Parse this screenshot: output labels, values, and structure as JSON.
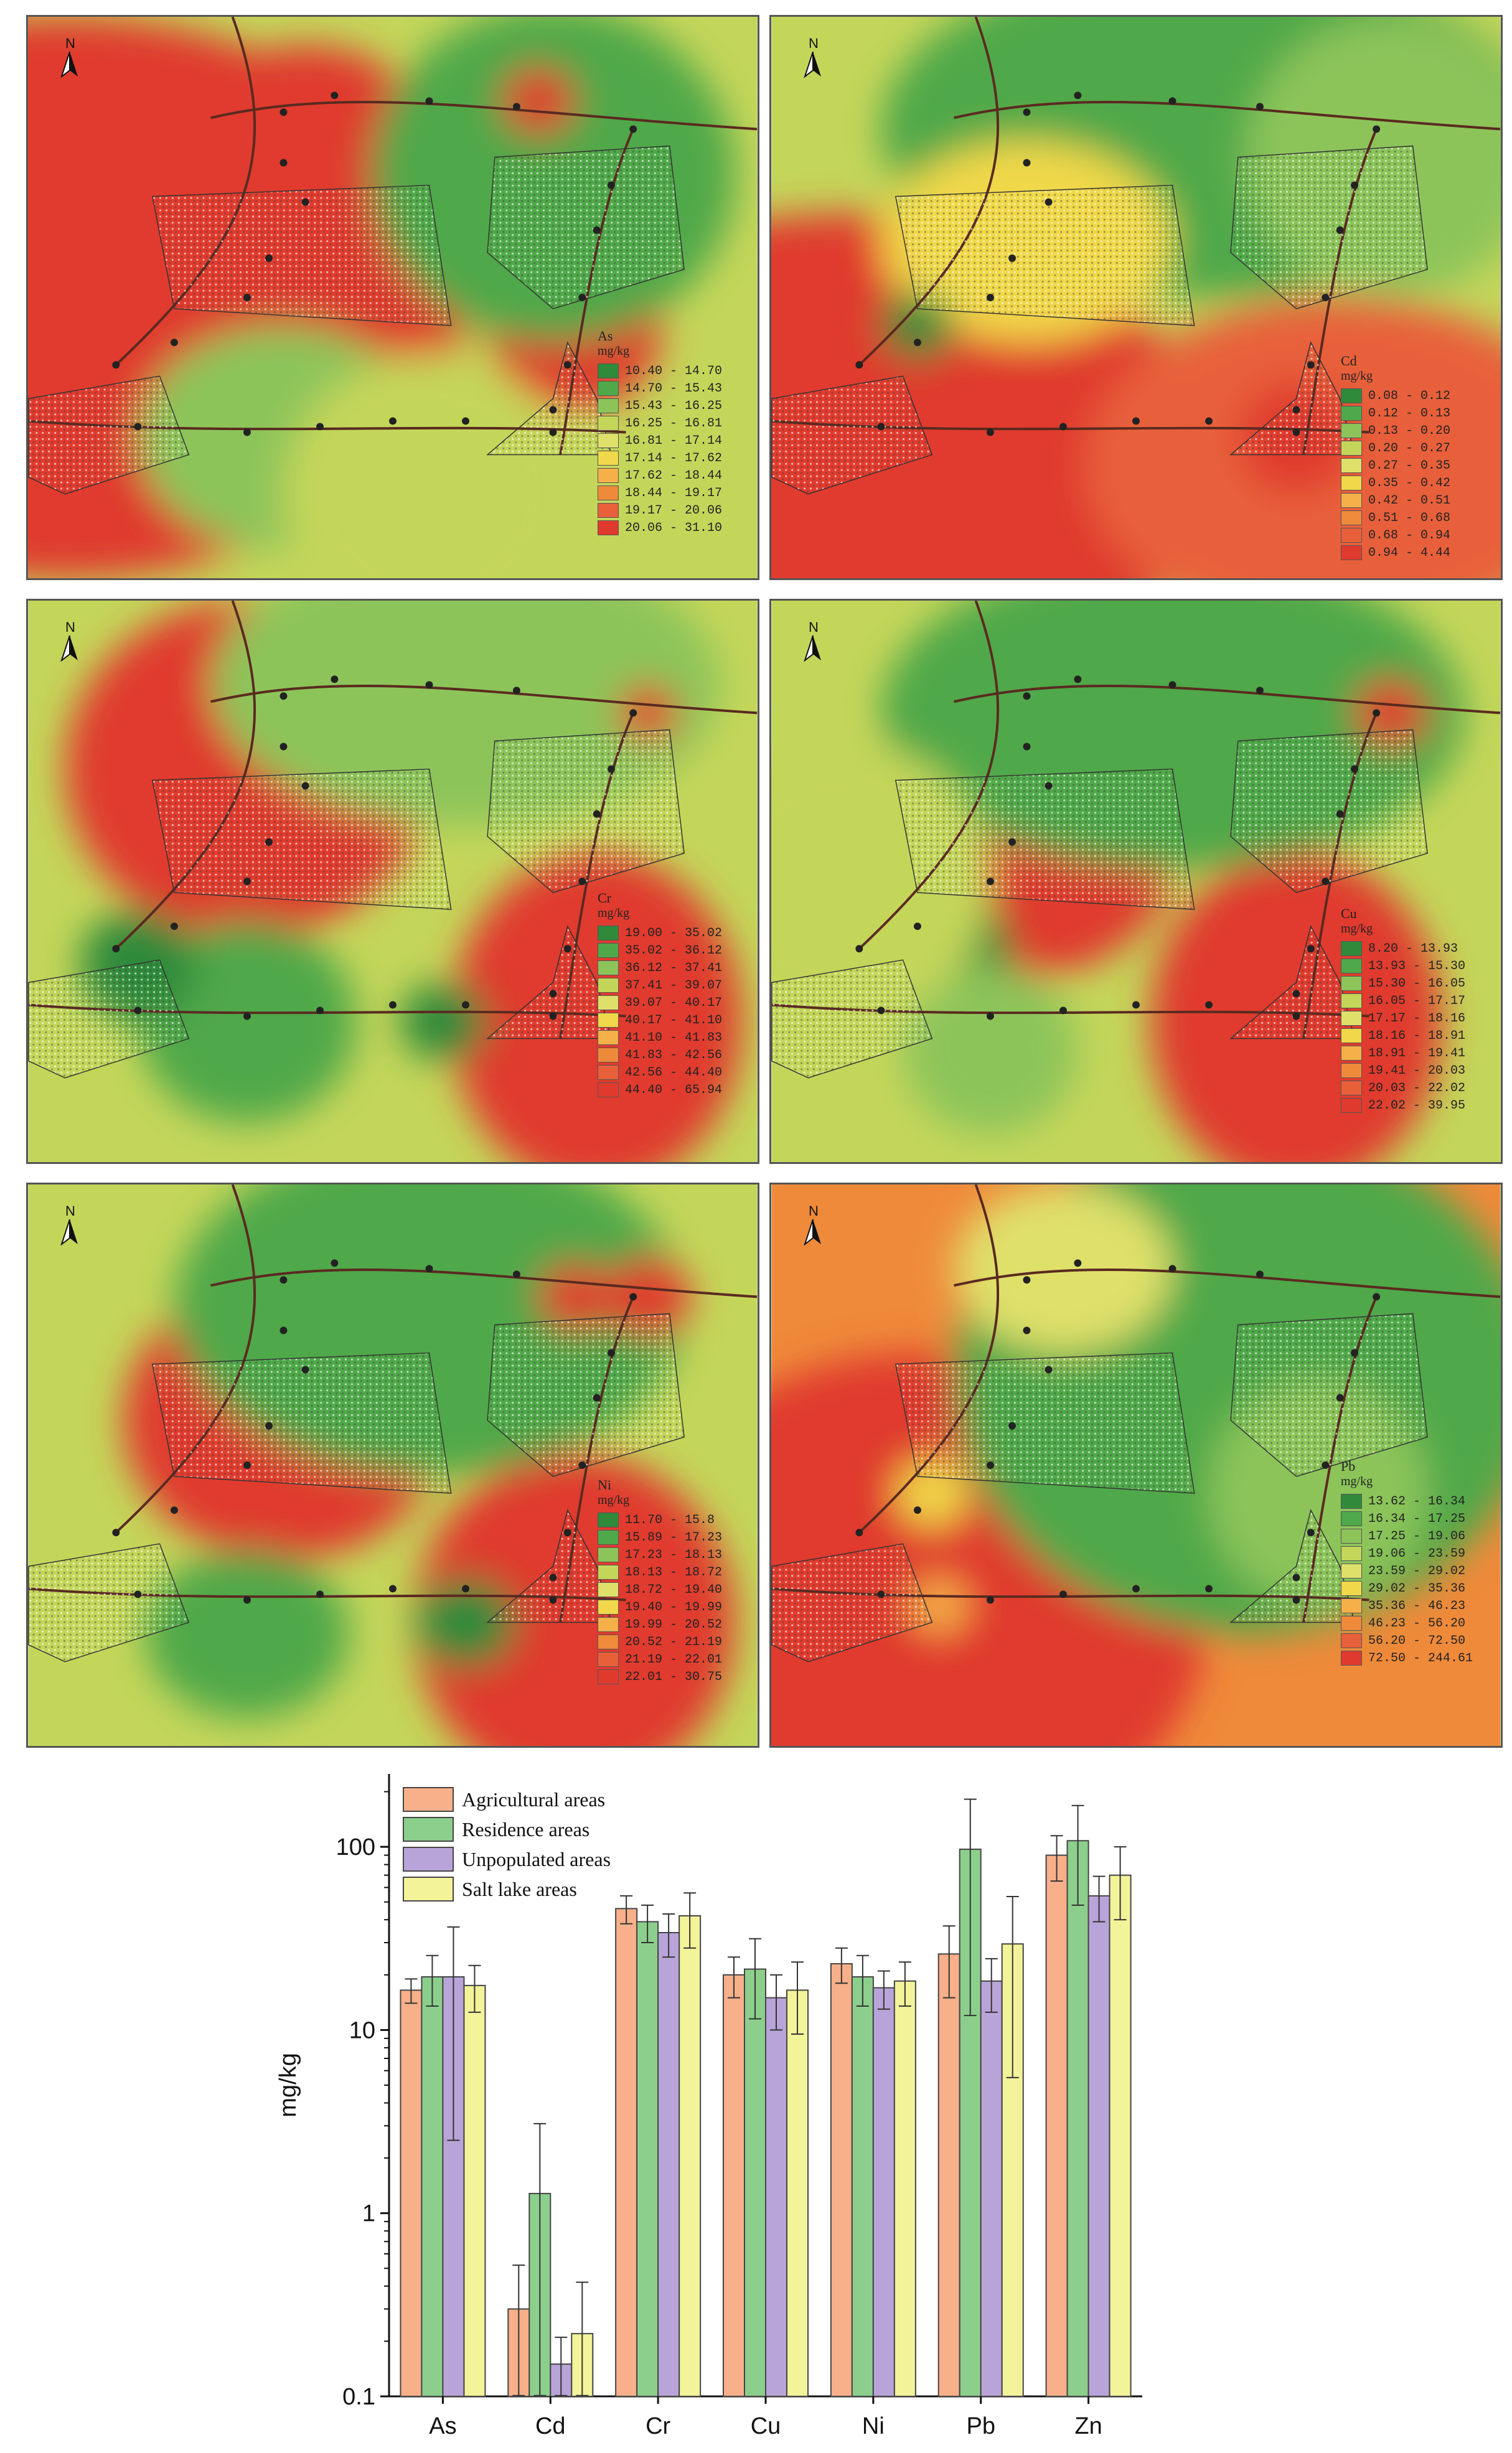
{
  "colors": {
    "green_dark": "#2f8a3a",
    "green": "#4fa84a",
    "green_light": "#8cc45a",
    "yellow_green": "#c4d65a",
    "yellow": "#f0d84a",
    "orange_light": "#f5b04a",
    "orange": "#ef8a3a",
    "red_orange": "#e8603a",
    "red": "#e03a2e",
    "road": "#5a2a20",
    "bar_agri": "#f7b08a",
    "bar_res": "#8ccf8c",
    "bar_unpop": "#b9a4d9",
    "bar_salt": "#f3f39a"
  },
  "maps": [
    {
      "element": "As",
      "unit": "mg/kg",
      "ranges": [
        "10.40 - 14.70",
        "14.70 - 15.43",
        "15.43 - 16.25",
        "16.25 - 16.81",
        "16.81 - 17.14",
        "17.14 - 17.62",
        "17.62 - 18.44",
        "18.44 - 19.17",
        "19.17 - 20.06",
        "20.06 - 31.10"
      ]
    },
    {
      "element": "Cd",
      "unit": "mg/kg",
      "ranges": [
        "0.08 - 0.12",
        "0.12 - 0.13",
        "0.13 - 0.20",
        "0.20 - 0.27",
        "0.27 - 0.35",
        "0.35 - 0.42",
        "0.42 - 0.51",
        "0.51 - 0.68",
        "0.68 - 0.94",
        "0.94 - 4.44"
      ]
    },
    {
      "element": "Cr",
      "unit": "mg/kg",
      "ranges": [
        "19.00 - 35.02",
        "35.02 - 36.12",
        "36.12 - 37.41",
        "37.41 - 39.07",
        "39.07 - 40.17",
        "40.17 - 41.10",
        "41.10 - 41.83",
        "41.83 - 42.56",
        "42.56 - 44.40",
        "44.40 - 65.94"
      ]
    },
    {
      "element": "Cu",
      "unit": "mg/kg",
      "ranges": [
        "8.20 - 13.93",
        "13.93 - 15.30",
        "15.30 - 16.05",
        "16.05 - 17.17",
        "17.17 - 18.16",
        "18.16 - 18.91",
        "18.91 - 19.41",
        "19.41 - 20.03",
        "20.03 - 22.02",
        "22.02 - 39.95"
      ]
    },
    {
      "element": "Ni",
      "unit": "mg/kg",
      "ranges": [
        "11.70 - 15.8",
        "15.89 - 17.23",
        "17.23 - 18.13",
        "18.13 - 18.72",
        "18.72 - 19.40",
        "19.40 - 19.99",
        "19.99 - 20.52",
        "20.52 - 21.19",
        "21.19 - 22.01",
        "22.01 - 30.75"
      ]
    },
    {
      "element": "Pb",
      "unit": "mg/kg",
      "ranges": [
        "13.62 - 16.34",
        "16.34 - 17.25",
        "17.25 - 19.06",
        "19.06 - 23.59",
        "23.59 - 29.02",
        "29.02 - 35.36",
        "35.36 - 46.23",
        "46.23 - 56.20",
        "56.20 - 72.50",
        "72.50 - 244.61"
      ]
    }
  ],
  "north_label": "N",
  "chart_data": {
    "type": "bar",
    "yscale": "log",
    "ylim": [
      0.1,
      250
    ],
    "yticks": [
      "0.1",
      "1",
      "10",
      "100"
    ],
    "ylabel": "mg/kg",
    "xlabel": "",
    "categories": [
      "As",
      "Cd",
      "Cr",
      "Cu",
      "Ni",
      "Pb",
      "Zn"
    ],
    "legend_position": "top-left",
    "series": [
      {
        "name": "Agricultural areas",
        "values": [
          16.5,
          0.3,
          46,
          20,
          23,
          26,
          90
        ],
        "errors": [
          2.5,
          0.22,
          8,
          5,
          5,
          11,
          25
        ]
      },
      {
        "name": "Residence areas",
        "values": [
          19.5,
          1.28,
          39,
          21.5,
          19.5,
          97,
          108
        ],
        "errors": [
          6,
          1.8,
          9,
          10,
          6,
          85,
          60
        ]
      },
      {
        "name": "Unpopulated areas",
        "values": [
          19.5,
          0.15,
          34,
          15,
          17,
          18.5,
          54
        ],
        "errors": [
          17,
          0.06,
          9,
          5,
          4,
          6,
          15
        ]
      },
      {
        "name": "Salt lake areas",
        "values": [
          17.5,
          0.22,
          42,
          16.5,
          18.5,
          29.5,
          70
        ],
        "errors": [
          5,
          0.2,
          14,
          7,
          5,
          24,
          30
        ]
      }
    ]
  }
}
